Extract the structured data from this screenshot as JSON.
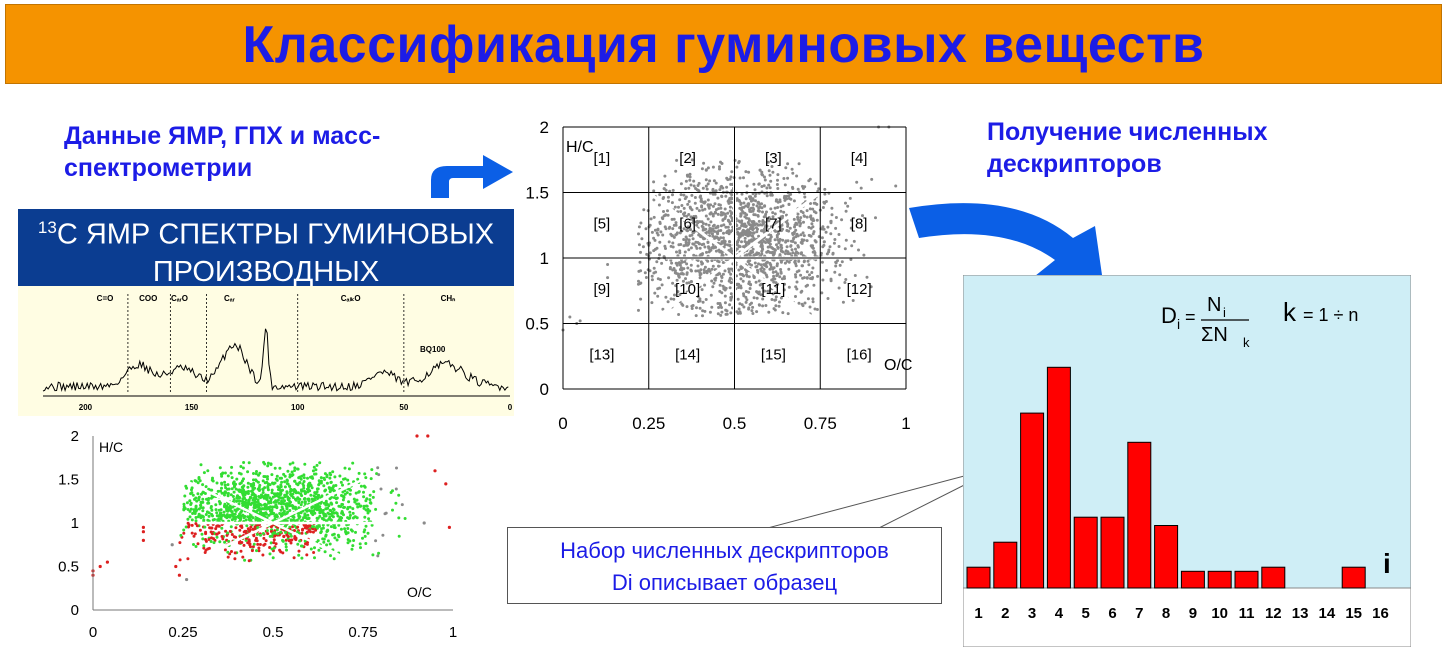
{
  "title": "Классификация гуминовых веществ",
  "left_caption": {
    "line1": "Данные ЯМР, ГПХ и масс-",
    "line2": "спектрометрии"
  },
  "right_caption": {
    "line1": "Получение численных",
    "line2": "дескрипторов"
  },
  "nmr_header": {
    "sup": "13",
    "line1_rest": "С ЯМР СПЕКТРЫ ГУМИНОВЫХ",
    "line2": "ПРОИЗВОДНЫХ"
  },
  "spectrum": {
    "region_labels": [
      "C=O",
      "COO",
      "CₐᵣO",
      "Cₐᵣ",
      "CₐₗₖO",
      "CHₙ"
    ],
    "sample_label": "BQ100",
    "x_ticks": [
      "200",
      "150",
      "100",
      "50",
      "0"
    ]
  },
  "callout": {
    "line1": "Набор численных дескрипторов",
    "line2": "Di описывает образец"
  },
  "formula": {
    "d_sub": "i",
    "num": "N",
    "num_sub": "i",
    "den": "ΣN",
    "den_sub": "k",
    "k_expr": "k",
    "range": "= 1 ÷ n"
  },
  "colors": {
    "title_bg": "#f59300",
    "title_text": "#1c1ce6",
    "nmr_bg": "#0b3d91",
    "hist_bg": "#cfeef6",
    "bar_fill": "#ff0000",
    "scatter_gray": "#8a8a8a",
    "scatter_green": "#33dd33",
    "scatter_red": "#dd2020",
    "arrow_blue": "#0b5fe6"
  },
  "chart_data": [
    {
      "type": "scatter",
      "name": "van-krevelen-grid",
      "ylabel": "H/C",
      "xlabel": "O/C",
      "xlim": [
        0,
        1
      ],
      "ylim": [
        0,
        2
      ],
      "x_ticks": [
        "0",
        "0.25",
        "0.5",
        "0.75",
        "1"
      ],
      "y_ticks": [
        "0",
        "0.5",
        "1",
        "1.5",
        "2"
      ],
      "grid": true,
      "cell_labels": [
        "[1]",
        "[2]",
        "[3]",
        "[4]",
        "[5]",
        "[6]",
        "[7]",
        "[8]",
        "[9]",
        "[10]",
        "[11]",
        "[12]",
        "[13]",
        "[14]",
        "[15]",
        "[16]"
      ]
    },
    {
      "type": "scatter",
      "name": "van-krevelen-small",
      "ylabel": "H/C",
      "xlabel": "O/C",
      "xlim": [
        0,
        1
      ],
      "ylim": [
        0,
        2
      ],
      "x_ticks": [
        "0",
        "0.25",
        "0.5",
        "0.75",
        "1"
      ],
      "y_ticks": [
        "0",
        "0.5",
        "1",
        "1.5",
        "2"
      ],
      "grid": false
    },
    {
      "type": "bar",
      "name": "descriptor-histogram",
      "xlabel": "i",
      "categories": [
        "1",
        "2",
        "3",
        "4",
        "5",
        "6",
        "7",
        "8",
        "9",
        "10",
        "11",
        "12",
        "13",
        "14",
        "15",
        "16"
      ],
      "values": [
        0.05,
        0.11,
        0.42,
        0.53,
        0.17,
        0.17,
        0.35,
        0.15,
        0.04,
        0.04,
        0.04,
        0.05,
        0,
        0,
        0.05,
        0
      ],
      "ylim": [
        0,
        0.6
      ]
    }
  ]
}
